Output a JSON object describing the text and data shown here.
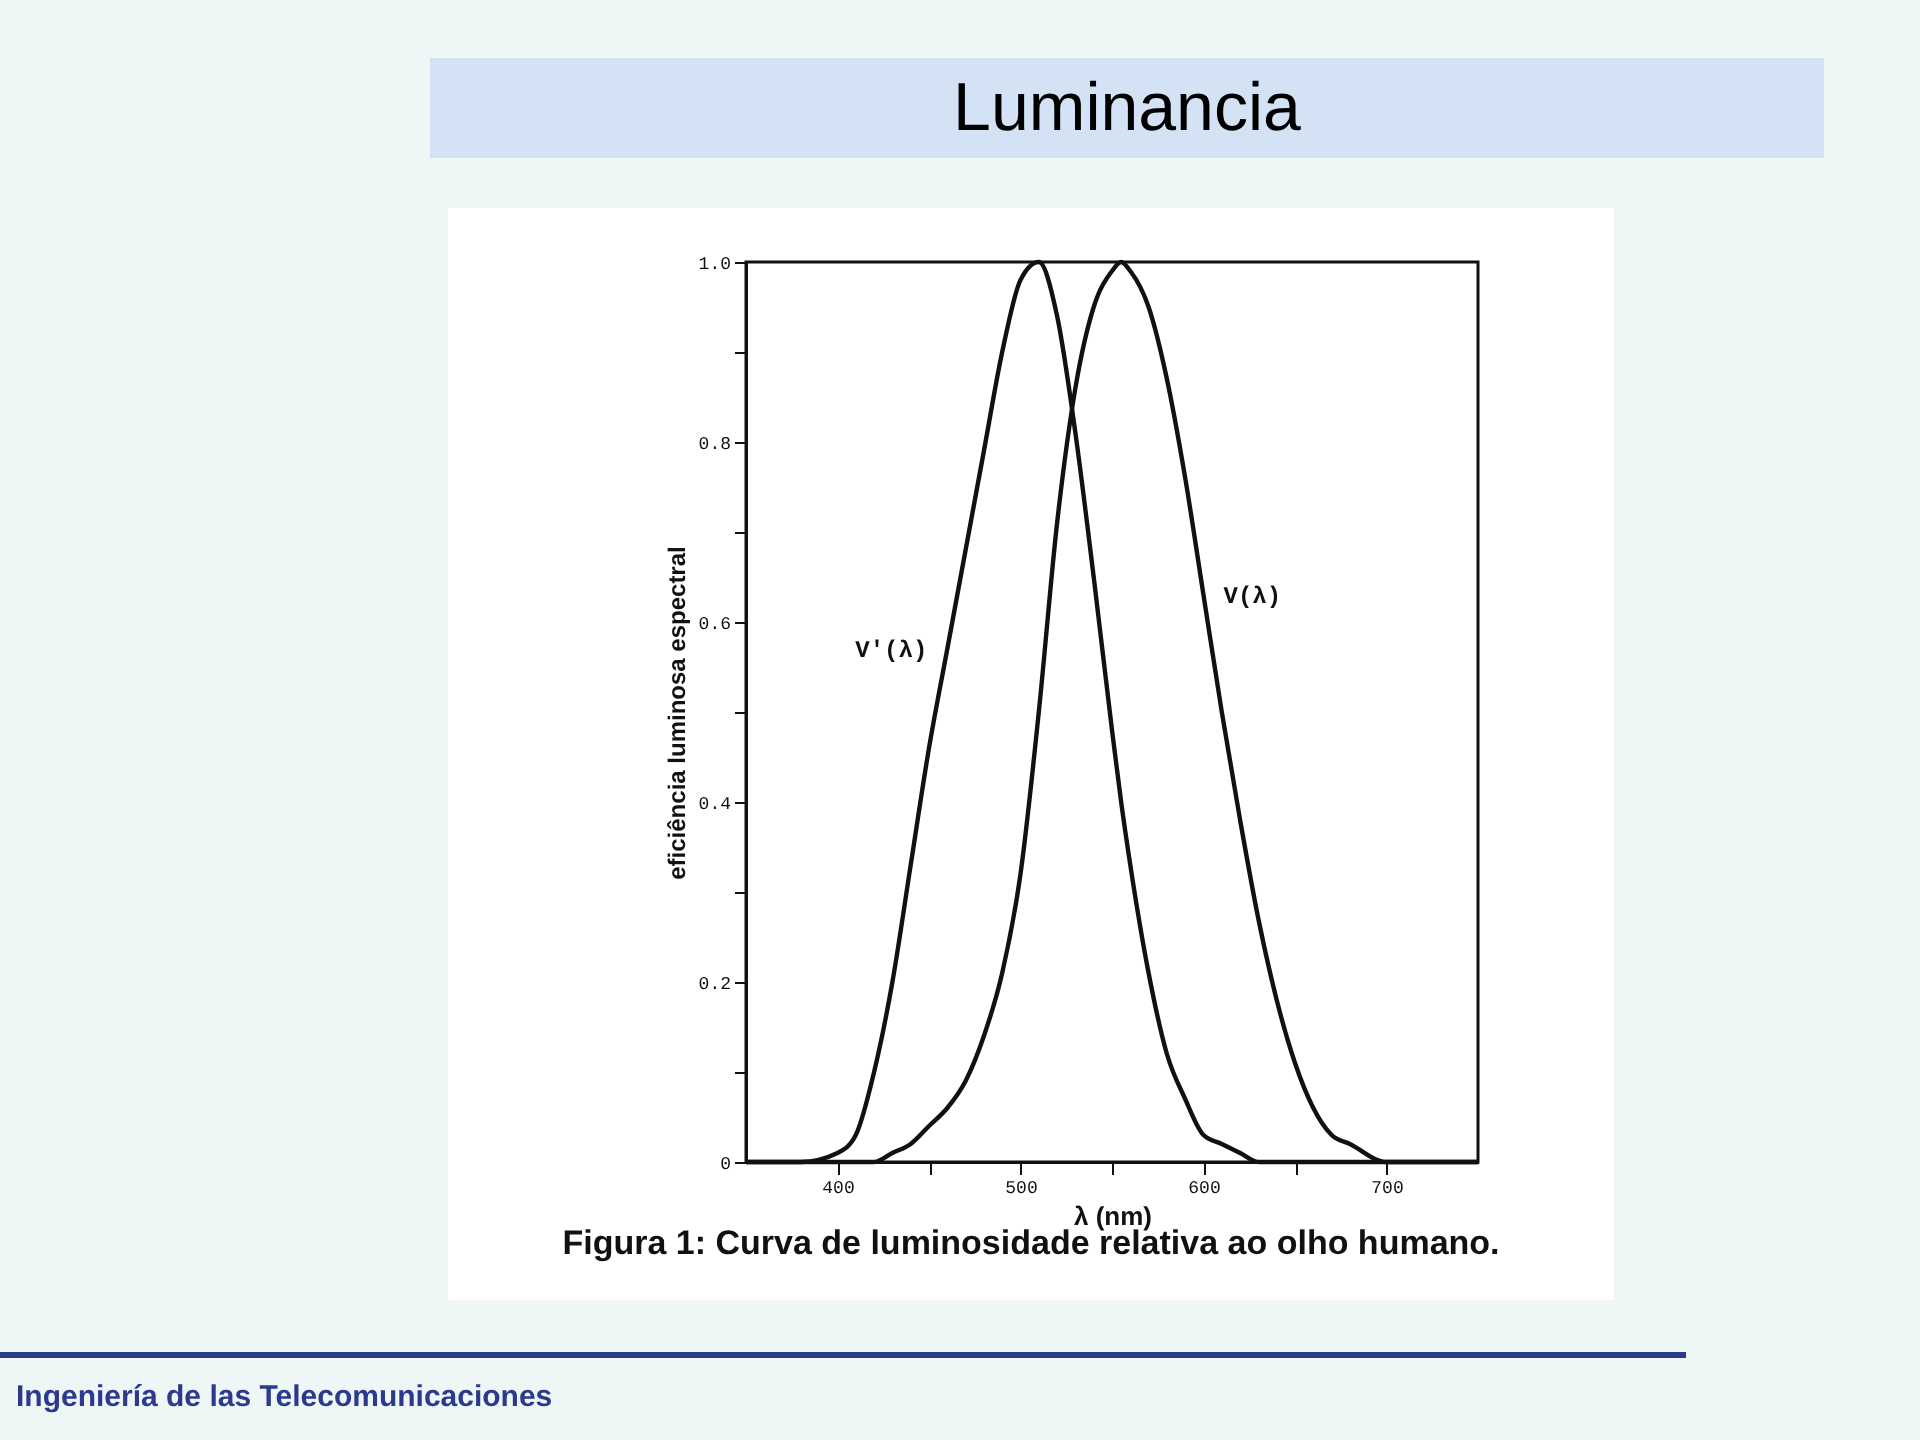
{
  "chart_data": {
    "type": "line",
    "title": "Luminancia",
    "xlabel": "λ (nm)",
    "ylabel": "eficiência luminosa espectral",
    "annotations": [
      "Figura 1: Curva de luminosidade relativa ao olho humano.",
      "Ingeniería de las Telecomunicaciones"
    ],
    "x": [
      350,
      380,
      400,
      410,
      420,
      430,
      440,
      450,
      460,
      470,
      480,
      490,
      500,
      510,
      520,
      530,
      540,
      550,
      555,
      560,
      570,
      580,
      590,
      600,
      610,
      620,
      630,
      640,
      650,
      660,
      670,
      680,
      700,
      720,
      750
    ],
    "series": [
      {
        "name": "V'(λ)",
        "color": "#111111",
        "values": [
          0,
          0,
          0.01,
          0.03,
          0.1,
          0.2,
          0.33,
          0.46,
          0.57,
          0.68,
          0.79,
          0.9,
          0.98,
          1.0,
          0.94,
          0.81,
          0.65,
          0.48,
          0.4,
          0.33,
          0.21,
          0.12,
          0.07,
          0.03,
          0.02,
          0.01,
          0,
          0,
          0,
          0,
          0,
          0,
          0,
          0,
          0
        ]
      },
      {
        "name": "V(λ)",
        "color": "#111111",
        "values": [
          0,
          0,
          0,
          0,
          0,
          0.01,
          0.02,
          0.04,
          0.06,
          0.09,
          0.14,
          0.21,
          0.32,
          0.5,
          0.71,
          0.86,
          0.95,
          0.99,
          1.0,
          0.99,
          0.95,
          0.87,
          0.76,
          0.63,
          0.5,
          0.38,
          0.27,
          0.18,
          0.11,
          0.06,
          0.03,
          0.02,
          0,
          0,
          0
        ]
      }
    ],
    "xlim": [
      350,
      750
    ],
    "xticks": [
      400,
      {
        "value": 450,
        "label": null
      },
      500,
      {
        "value": 550,
        "label": null
      },
      600,
      {
        "value": 650,
        "label": null
      },
      700
    ],
    "ylim": [
      0,
      1
    ],
    "yticks": [
      0,
      {
        "value": 0.1,
        "label": null
      },
      0.2,
      {
        "value": 0.3,
        "label": null
      },
      0.4,
      {
        "value": 0.5,
        "label": null
      },
      0.6,
      {
        "value": 0.7,
        "label": null
      },
      0.8,
      {
        "value": 0.9,
        "label": null
      },
      {
        "value": 1,
        "label": "1.0"
      }
    ],
    "grid": false,
    "marker": "none",
    "line_style": "solid"
  }
}
